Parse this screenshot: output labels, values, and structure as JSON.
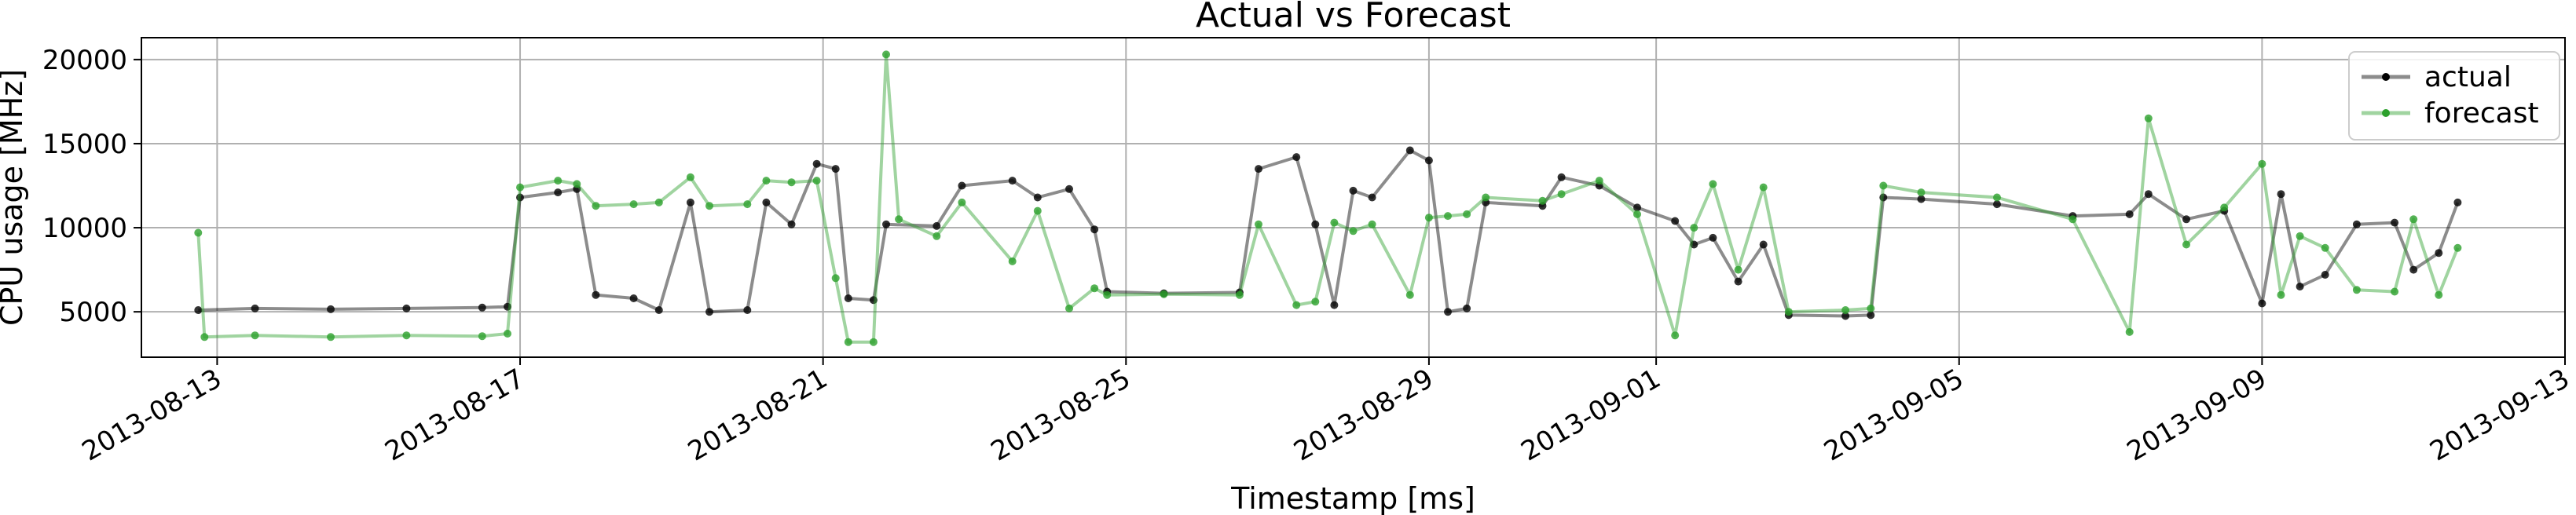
{
  "chart_data": {
    "type": "line",
    "title": "Actual vs Forecast",
    "xlabel": "Timestamp [ms]",
    "ylabel": "CPU usage [MHz]",
    "x_type": "date",
    "xlim": [
      "2013-08-12",
      "2013-09-13"
    ],
    "ylim": [
      2300,
      21300
    ],
    "x_ticks": [
      "2013-08-13",
      "2013-08-17",
      "2013-08-21",
      "2013-08-25",
      "2013-08-29",
      "2013-09-01",
      "2013-09-05",
      "2013-09-09",
      "2013-09-13"
    ],
    "y_ticks": [
      5000,
      10000,
      15000,
      20000
    ],
    "grid": true,
    "legend_position": "top-right",
    "fill_between": true,
    "series": [
      {
        "name": "actual",
        "color": "#000000",
        "points": [
          [
            "2013-08-12 18:00",
            5100
          ],
          [
            "2013-08-13 12:00",
            5200
          ],
          [
            "2013-08-14 12:00",
            5150
          ],
          [
            "2013-08-15 12:00",
            5200
          ],
          [
            "2013-08-16 12:00",
            5250
          ],
          [
            "2013-08-16 20:00",
            5300
          ],
          [
            "2013-08-17 00:00",
            11800
          ],
          [
            "2013-08-17 12:00",
            12100
          ],
          [
            "2013-08-17 18:00",
            12300
          ],
          [
            "2013-08-18 00:00",
            6000
          ],
          [
            "2013-08-18 12:00",
            5800
          ],
          [
            "2013-08-18 20:00",
            5100
          ],
          [
            "2013-08-19 06:00",
            11500
          ],
          [
            "2013-08-19 12:00",
            5000
          ],
          [
            "2013-08-20 00:00",
            5100
          ],
          [
            "2013-08-20 06:00",
            11500
          ],
          [
            "2013-08-20 14:00",
            10200
          ],
          [
            "2013-08-20 22:00",
            13800
          ],
          [
            "2013-08-21 04:00",
            13500
          ],
          [
            "2013-08-21 08:00",
            5800
          ],
          [
            "2013-08-21 16:00",
            5700
          ],
          [
            "2013-08-21 20:00",
            10200
          ],
          [
            "2013-08-22 12:00",
            10100
          ],
          [
            "2013-08-22 20:00",
            12500
          ],
          [
            "2013-08-23 12:00",
            12800
          ],
          [
            "2013-08-23 20:00",
            11800
          ],
          [
            "2013-08-24 06:00",
            12300
          ],
          [
            "2013-08-24 14:00",
            9900
          ],
          [
            "2013-08-24 18:00",
            6200
          ],
          [
            "2013-08-25 12:00",
            6100
          ],
          [
            "2013-08-26 12:00",
            6150
          ],
          [
            "2013-08-26 18:00",
            13500
          ],
          [
            "2013-08-27 06:00",
            14200
          ],
          [
            "2013-08-27 12:00",
            10200
          ],
          [
            "2013-08-27 18:00",
            5400
          ],
          [
            "2013-08-28 00:00",
            12200
          ],
          [
            "2013-08-28 06:00",
            11800
          ],
          [
            "2013-08-28 18:00",
            14600
          ],
          [
            "2013-08-29 00:00",
            14000
          ],
          [
            "2013-08-29 06:00",
            5000
          ],
          [
            "2013-08-29 12:00",
            5200
          ],
          [
            "2013-08-29 18:00",
            11500
          ],
          [
            "2013-08-30 12:00",
            11300
          ],
          [
            "2013-08-30 18:00",
            13000
          ],
          [
            "2013-08-31 06:00",
            12500
          ],
          [
            "2013-08-31 18:00",
            11200
          ],
          [
            "2013-09-01 06:00",
            10400
          ],
          [
            "2013-09-01 12:00",
            9000
          ],
          [
            "2013-09-01 18:00",
            9400
          ],
          [
            "2013-09-02 02:00",
            6800
          ],
          [
            "2013-09-02 10:00",
            9000
          ],
          [
            "2013-09-02 18:00",
            4800
          ],
          [
            "2013-09-03 12:00",
            4750
          ],
          [
            "2013-09-03 20:00",
            4800
          ],
          [
            "2013-09-04 00:00",
            11800
          ],
          [
            "2013-09-04 12:00",
            11700
          ],
          [
            "2013-09-05 12:00",
            11400
          ],
          [
            "2013-09-06 12:00",
            10700
          ],
          [
            "2013-09-07 06:00",
            10800
          ],
          [
            "2013-09-07 12:00",
            12000
          ],
          [
            "2013-09-08 00:00",
            10500
          ],
          [
            "2013-09-08 12:00",
            11000
          ],
          [
            "2013-09-09 00:00",
            5500
          ],
          [
            "2013-09-09 06:00",
            12000
          ],
          [
            "2013-09-09 12:00",
            6500
          ],
          [
            "2013-09-09 20:00",
            7200
          ],
          [
            "2013-09-10 06:00",
            10200
          ],
          [
            "2013-09-10 18:00",
            10300
          ],
          [
            "2013-09-11 00:00",
            7500
          ],
          [
            "2013-09-11 08:00",
            8500
          ],
          [
            "2013-09-11 14:00",
            11500
          ]
        ]
      },
      {
        "name": "forecast",
        "color": "#2ca02c",
        "points": [
          [
            "2013-08-12 18:00",
            9700
          ],
          [
            "2013-08-12 20:00",
            3500
          ],
          [
            "2013-08-13 12:00",
            3600
          ],
          [
            "2013-08-14 12:00",
            3500
          ],
          [
            "2013-08-15 12:00",
            3600
          ],
          [
            "2013-08-16 12:00",
            3550
          ],
          [
            "2013-08-16 20:00",
            3700
          ],
          [
            "2013-08-17 00:00",
            12400
          ],
          [
            "2013-08-17 12:00",
            12800
          ],
          [
            "2013-08-17 18:00",
            12600
          ],
          [
            "2013-08-18 00:00",
            11300
          ],
          [
            "2013-08-18 12:00",
            11400
          ],
          [
            "2013-08-18 20:00",
            11500
          ],
          [
            "2013-08-19 06:00",
            13000
          ],
          [
            "2013-08-19 12:00",
            11300
          ],
          [
            "2013-08-20 00:00",
            11400
          ],
          [
            "2013-08-20 06:00",
            12800
          ],
          [
            "2013-08-20 14:00",
            12700
          ],
          [
            "2013-08-20 22:00",
            12800
          ],
          [
            "2013-08-21 04:00",
            7000
          ],
          [
            "2013-08-21 08:00",
            3200
          ],
          [
            "2013-08-21 16:00",
            3200
          ],
          [
            "2013-08-21 20:00",
            20300
          ],
          [
            "2013-08-22 00:00",
            10500
          ],
          [
            "2013-08-22 12:00",
            9500
          ],
          [
            "2013-08-22 20:00",
            11500
          ],
          [
            "2013-08-23 12:00",
            8000
          ],
          [
            "2013-08-23 20:00",
            11000
          ],
          [
            "2013-08-24 06:00",
            5200
          ],
          [
            "2013-08-24 14:00",
            6400
          ],
          [
            "2013-08-24 18:00",
            6000
          ],
          [
            "2013-08-25 12:00",
            6050
          ],
          [
            "2013-08-26 12:00",
            6000
          ],
          [
            "2013-08-26 18:00",
            10200
          ],
          [
            "2013-08-27 06:00",
            5400
          ],
          [
            "2013-08-27 12:00",
            5600
          ],
          [
            "2013-08-27 18:00",
            10300
          ],
          [
            "2013-08-28 00:00",
            9800
          ],
          [
            "2013-08-28 06:00",
            10200
          ],
          [
            "2013-08-28 18:00",
            6000
          ],
          [
            "2013-08-29 00:00",
            10600
          ],
          [
            "2013-08-29 06:00",
            10700
          ],
          [
            "2013-08-29 12:00",
            10800
          ],
          [
            "2013-08-29 18:00",
            11800
          ],
          [
            "2013-08-30 12:00",
            11600
          ],
          [
            "2013-08-30 18:00",
            12000
          ],
          [
            "2013-08-31 06:00",
            12800
          ],
          [
            "2013-08-31 18:00",
            10800
          ],
          [
            "2013-09-01 06:00",
            3600
          ],
          [
            "2013-09-01 12:00",
            10000
          ],
          [
            "2013-09-01 18:00",
            12600
          ],
          [
            "2013-09-02 02:00",
            7500
          ],
          [
            "2013-09-02 10:00",
            12400
          ],
          [
            "2013-09-02 18:00",
            5000
          ],
          [
            "2013-09-03 12:00",
            5100
          ],
          [
            "2013-09-03 20:00",
            5200
          ],
          [
            "2013-09-04 00:00",
            12500
          ],
          [
            "2013-09-04 12:00",
            12100
          ],
          [
            "2013-09-05 12:00",
            11800
          ],
          [
            "2013-09-06 12:00",
            10500
          ],
          [
            "2013-09-07 06:00",
            3800
          ],
          [
            "2013-09-07 12:00",
            16500
          ],
          [
            "2013-09-08 00:00",
            9000
          ],
          [
            "2013-09-08 12:00",
            11200
          ],
          [
            "2013-09-09 00:00",
            13800
          ],
          [
            "2013-09-09 06:00",
            6000
          ],
          [
            "2013-09-09 12:00",
            9500
          ],
          [
            "2013-09-09 20:00",
            8800
          ],
          [
            "2013-09-10 06:00",
            6300
          ],
          [
            "2013-09-10 18:00",
            6200
          ],
          [
            "2013-09-11 00:00",
            10500
          ],
          [
            "2013-09-11 08:00",
            6000
          ],
          [
            "2013-09-11 14:00",
            8800
          ]
        ]
      }
    ]
  }
}
